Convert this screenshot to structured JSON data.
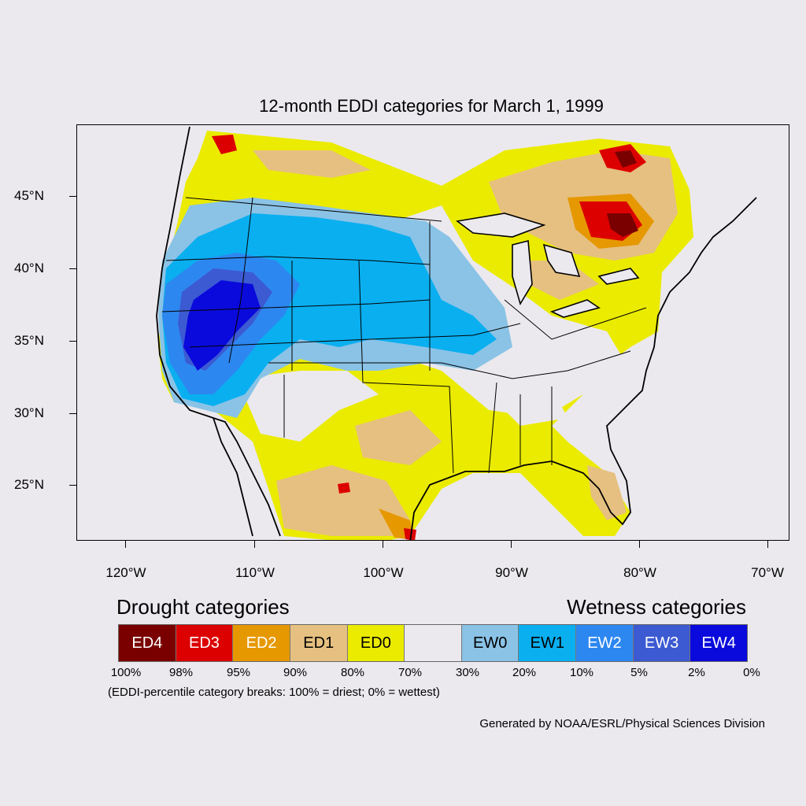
{
  "title": "12-month EDDI categories for March 1, 1999",
  "latitude_labels": [
    "45°N",
    "40°N",
    "35°N",
    "30°N",
    "25°N"
  ],
  "longitude_labels": [
    "120°W",
    "110°W",
    "100°W",
    "90°W",
    "80°W",
    "70°W"
  ],
  "legend": {
    "drought_heading": "Drought categories",
    "wetness_heading": "Wetness categories",
    "categories": [
      {
        "label": "ED4",
        "color": "#7a0000",
        "text_color": "#ffffff"
      },
      {
        "label": "ED3",
        "color": "#dc0000",
        "text_color": "#ffffff"
      },
      {
        "label": "ED2",
        "color": "#e69800",
        "text_color": "#ffffff"
      },
      {
        "label": "ED1",
        "color": "#e6c080",
        "text_color": "#000000"
      },
      {
        "label": "ED0",
        "color": "#ebeb00",
        "text_color": "#000000"
      },
      {
        "label": "",
        "color": "#ebe9ee",
        "text_color": "#000000"
      },
      {
        "label": "EW0",
        "color": "#8ac3e6",
        "text_color": "#000000"
      },
      {
        "label": "EW1",
        "color": "#0aaff0",
        "text_color": "#000000"
      },
      {
        "label": "EW2",
        "color": "#2d87f0",
        "text_color": "#ffffff"
      },
      {
        "label": "EW3",
        "color": "#3c5ad2",
        "text_color": "#ffffff"
      },
      {
        "label": "EW4",
        "color": "#0a0adc",
        "text_color": "#ffffff"
      }
    ],
    "percentile_breaks": [
      "100%",
      "98%",
      "95%",
      "90%",
      "80%",
      "70%",
      "30%",
      "20%",
      "10%",
      "5%",
      "2%",
      "0%"
    ],
    "breaks_note": "(EDDI-percentile category breaks: 100% = driest; 0% = wettest)"
  },
  "credit": "Generated by NOAA/ESRL/Physical Sciences Division"
}
